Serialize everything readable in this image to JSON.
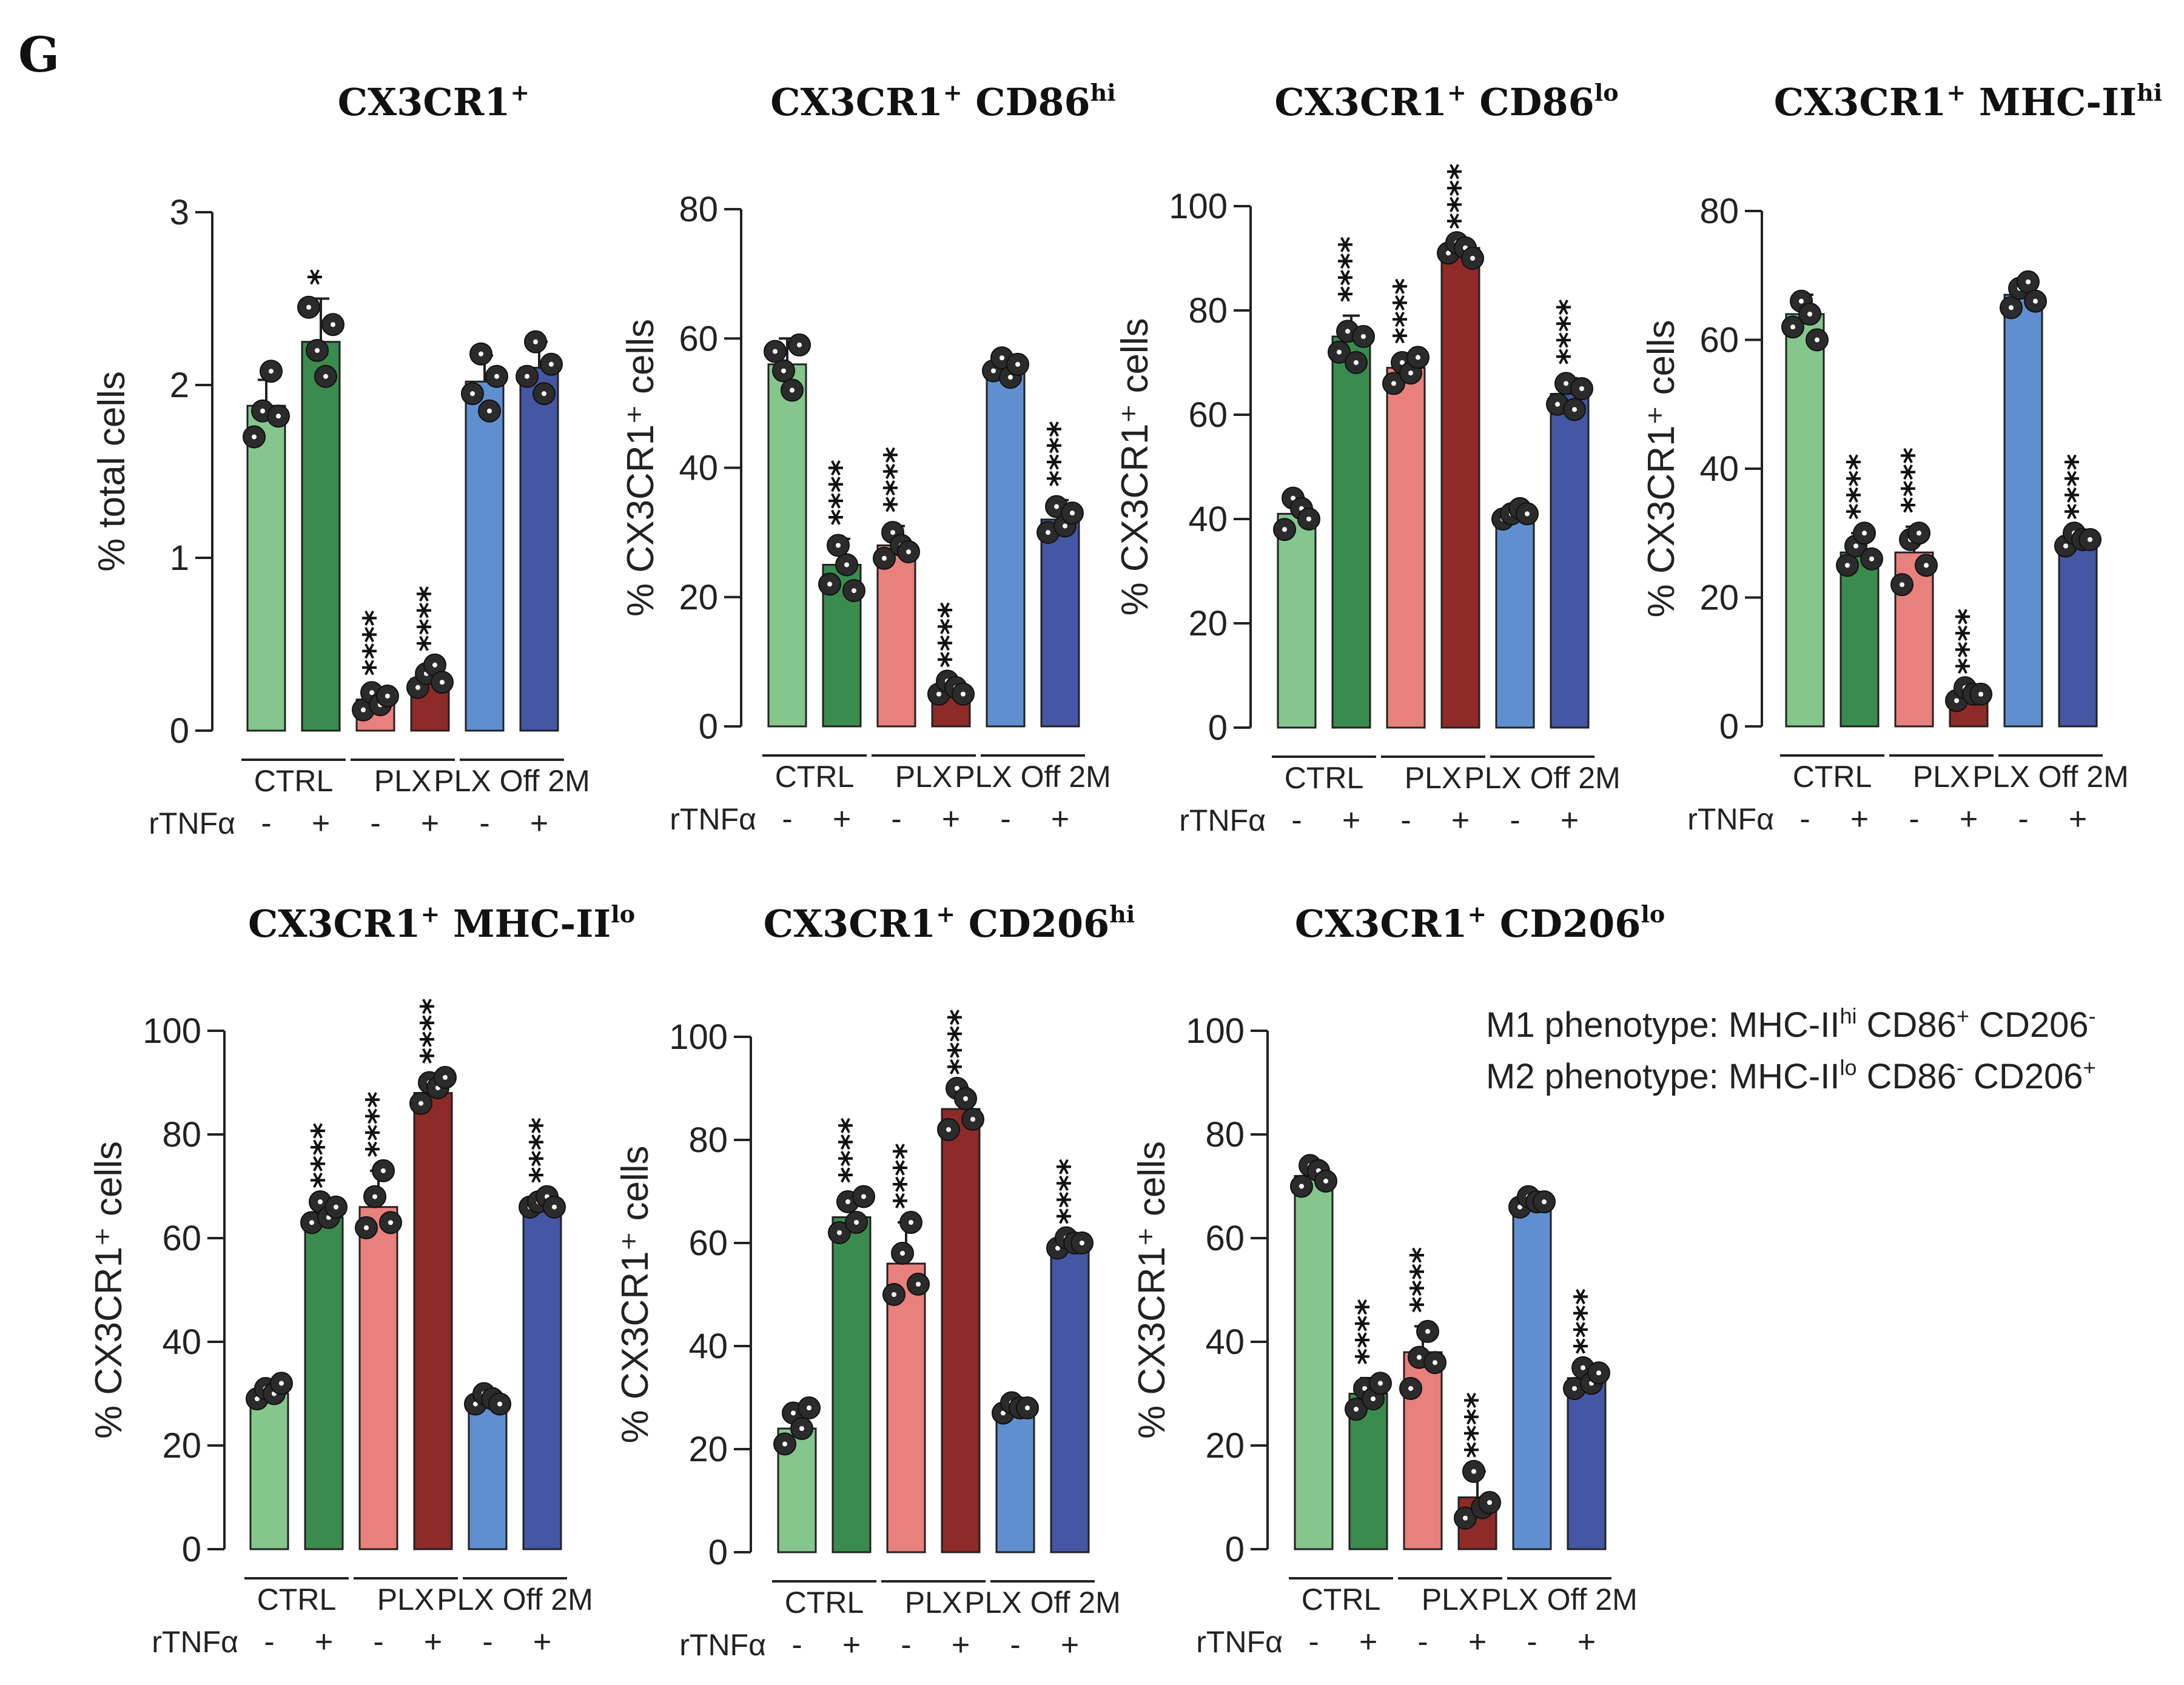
{
  "panel_letter": "G",
  "group_labels": [
    "CTRL",
    "PLX",
    "PLX Off 2M"
  ],
  "treatment_label": "rTNFα",
  "treatment_signs": [
    "-",
    "+",
    "-",
    "+",
    "-",
    "+"
  ],
  "colors": [
    "#84c68c",
    "#3a8b4e",
    "#e8807c",
    "#8e2a28",
    "#5f8fd0",
    "#4556a4"
  ],
  "phenotype_notes": [
    {
      "prefix": "M1 phenotype: MHC-II",
      "sup1": "hi",
      "mid1": " CD86",
      "sup2": "+",
      "mid2": " CD206",
      "sup3": "-"
    },
    {
      "prefix": "M2 phenotype: MHC-II",
      "sup1": "lo",
      "mid1": " CD86",
      "sup2": "-",
      "mid2": " CD206",
      "sup3": "+"
    }
  ],
  "chart_data": [
    {
      "type": "bar",
      "title": "CX3CR1",
      "title_sup": "+",
      "title_rest": "",
      "title_rest_sup": "",
      "ylabel": "% total cells",
      "ylim": [
        0,
        3
      ],
      "yticks": [
        0,
        1,
        2,
        3
      ],
      "values": [
        1.88,
        2.25,
        0.18,
        0.3,
        2.02,
        2.1
      ],
      "errors": [
        0.15,
        0.25,
        0.06,
        0.08,
        0.15,
        0.15
      ],
      "points": [
        [
          1.7,
          1.85,
          2.08,
          1.82
        ],
        [
          2.45,
          2.2,
          2.05,
          2.35
        ],
        [
          0.12,
          0.22,
          0.15,
          0.2
        ],
        [
          0.25,
          0.33,
          0.38,
          0.28
        ],
        [
          1.95,
          2.18,
          1.85,
          2.05
        ],
        [
          2.05,
          2.25,
          1.95,
          2.12
        ]
      ],
      "significance": [
        "",
        "*",
        "****",
        "****",
        "",
        ""
      ]
    },
    {
      "type": "bar",
      "title": "CX3CR1",
      "title_sup": "+",
      "title_rest": " CD86",
      "title_rest_sup": "hi",
      "ylabel": "% CX3CR1⁺ cells",
      "ylim": [
        0,
        80
      ],
      "yticks": [
        0,
        20,
        40,
        60,
        80
      ],
      "values": [
        56,
        25,
        28,
        6,
        56,
        32
      ],
      "errors": [
        4,
        4,
        3,
        1,
        1,
        3
      ],
      "points": [
        [
          58,
          55,
          52,
          59
        ],
        [
          22,
          28,
          25,
          21
        ],
        [
          26,
          30,
          28,
          27
        ],
        [
          5,
          7,
          6,
          5
        ],
        [
          55,
          57,
          54,
          56
        ],
        [
          30,
          34,
          31,
          33
        ]
      ],
      "significance": [
        "",
        "****",
        "****",
        "****",
        "",
        "****"
      ]
    },
    {
      "type": "bar",
      "title": "CX3CR1",
      "title_sup": "+",
      "title_rest": " CD86",
      "title_rest_sup": "lo",
      "ylabel": "% CX3CR1⁺ cells",
      "ylim": [
        0,
        100
      ],
      "yticks": [
        0,
        20,
        40,
        60,
        80,
        100
      ],
      "values": [
        41,
        75,
        69,
        92,
        41,
        64
      ],
      "errors": [
        3,
        4,
        2,
        1,
        1,
        3
      ],
      "points": [
        [
          38,
          44,
          42,
          40
        ],
        [
          72,
          76,
          70,
          75
        ],
        [
          66,
          70,
          68,
          71
        ],
        [
          91,
          93,
          92,
          90
        ],
        [
          40,
          41,
          42,
          41
        ],
        [
          62,
          66,
          61,
          65
        ]
      ],
      "significance": [
        "",
        "****",
        "****",
        "****",
        "",
        "****"
      ]
    },
    {
      "type": "bar",
      "title": "CX3CR1",
      "title_sup": "+",
      "title_rest": " MHC-II",
      "title_rest_sup": "hi",
      "ylabel": "% CX3CR1⁺ cells",
      "ylim": [
        0,
        80
      ],
      "yticks": [
        0,
        20,
        40,
        60,
        80
      ],
      "values": [
        64,
        27,
        27,
        5,
        67,
        29
      ],
      "errors": [
        3,
        3,
        4,
        1,
        2,
        1
      ],
      "points": [
        [
          62,
          66,
          64,
          60
        ],
        [
          25,
          28,
          30,
          26
        ],
        [
          22,
          29,
          30,
          25
        ],
        [
          4,
          6,
          5,
          5
        ],
        [
          65,
          68,
          69,
          66
        ],
        [
          28,
          30,
          29,
          29
        ]
      ],
      "significance": [
        "",
        "****",
        "****",
        "****",
        "",
        "****"
      ]
    },
    {
      "type": "bar",
      "title": "CX3CR1",
      "title_sup": "+",
      "title_rest": " MHC-II",
      "title_rest_sup": "lo",
      "ylabel": "% CX3CR1⁺ cells",
      "ylim": [
        0,
        100
      ],
      "yticks": [
        0,
        20,
        40,
        60,
        80,
        100
      ],
      "values": [
        30,
        64,
        66,
        88,
        29,
        67
      ],
      "errors": [
        2,
        3,
        7,
        2,
        2,
        1
      ],
      "points": [
        [
          29,
          31,
          30,
          32
        ],
        [
          63,
          67,
          64,
          66
        ],
        [
          62,
          68,
          73,
          63
        ],
        [
          86,
          90,
          89,
          91
        ],
        [
          28,
          30,
          29,
          28
        ],
        [
          66,
          67,
          68,
          66
        ]
      ],
      "significance": [
        "",
        "****",
        "****",
        "****",
        "",
        "****"
      ]
    },
    {
      "type": "bar",
      "title": "CX3CR1",
      "title_sup": "+",
      "title_rest": " CD206",
      "title_rest_sup": "hi",
      "ylabel": "% CX3CR1⁺ cells",
      "ylim": [
        0,
        100
      ],
      "yticks": [
        0,
        20,
        40,
        60,
        80,
        100
      ],
      "values": [
        24,
        65,
        56,
        86,
        28,
        60
      ],
      "errors": [
        4,
        4,
        8,
        4,
        1,
        1
      ],
      "points": [
        [
          21,
          27,
          24,
          28
        ],
        [
          62,
          68,
          64,
          69
        ],
        [
          50,
          58,
          64,
          52
        ],
        [
          82,
          90,
          88,
          84
        ],
        [
          27,
          29,
          28,
          28
        ],
        [
          59,
          61,
          60,
          60
        ]
      ],
      "significance": [
        "",
        "****",
        "****",
        "****",
        "",
        "****"
      ]
    },
    {
      "type": "bar",
      "title": "CX3CR1",
      "title_sup": "+",
      "title_rest": " CD206",
      "title_rest_sup": "lo",
      "ylabel": "% CX3CR1⁺ cells",
      "ylim": [
        0,
        100
      ],
      "yticks": [
        0,
        20,
        40,
        60,
        80,
        100
      ],
      "values": [
        72,
        30,
        38,
        10,
        67,
        33
      ],
      "errors": [
        3,
        3,
        5,
        5,
        1,
        2
      ],
      "points": [
        [
          70,
          74,
          73,
          71
        ],
        [
          27,
          31,
          29,
          32
        ],
        [
          31,
          37,
          42,
          36
        ],
        [
          6,
          15,
          8,
          9
        ],
        [
          66,
          68,
          67,
          67
        ],
        [
          31,
          35,
          32,
          34
        ]
      ],
      "significance": [
        "",
        "****",
        "****",
        "****",
        "",
        "****"
      ]
    }
  ]
}
